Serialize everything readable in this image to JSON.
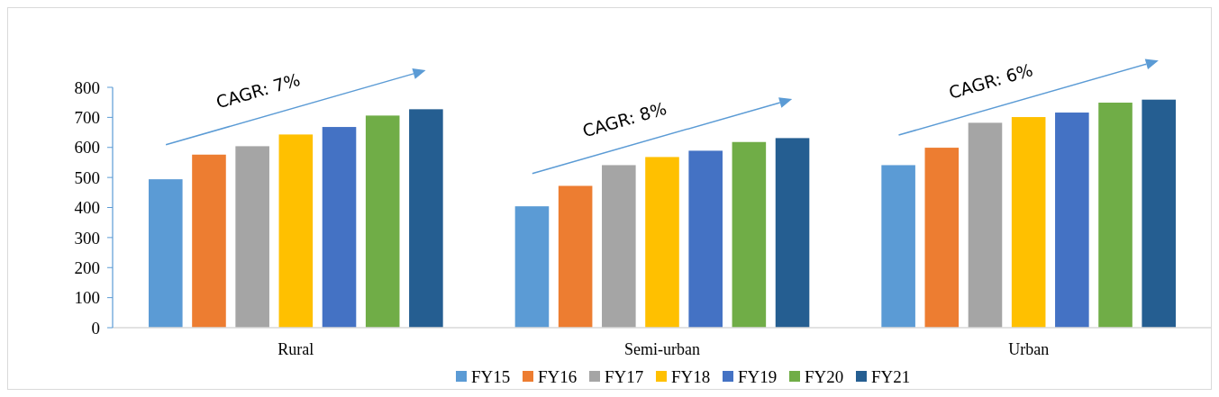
{
  "chart_data": {
    "type": "bar",
    "categories": [
      "Rural",
      "Semi-urban",
      "Urban"
    ],
    "series": [
      {
        "name": "FY15",
        "color": "#5b9bd5",
        "values": [
          494,
          404,
          541
        ]
      },
      {
        "name": "FY16",
        "color": "#ed7d31",
        "values": [
          576,
          472,
          599
        ]
      },
      {
        "name": "FY17",
        "color": "#a5a5a5",
        "values": [
          604,
          541,
          682
        ]
      },
      {
        "name": "FY18",
        "color": "#ffc000",
        "values": [
          643,
          568,
          701
        ]
      },
      {
        "name": "FY19",
        "color": "#4472c4",
        "values": [
          668,
          589,
          716
        ]
      },
      {
        "name": "FY20",
        "color": "#70ad47",
        "values": [
          706,
          618,
          749
        ]
      },
      {
        "name": "FY21",
        "color": "#255e91",
        "values": [
          727,
          631,
          759
        ]
      }
    ],
    "ylim": [
      0,
      800
    ],
    "yticks": [
      0,
      100,
      200,
      300,
      400,
      500,
      600,
      700,
      800
    ],
    "grid": false,
    "legend": "bottom",
    "annotations": [
      "CAGR: 7%",
      "CAGR: 8%",
      "CAGR: 6%"
    ]
  }
}
